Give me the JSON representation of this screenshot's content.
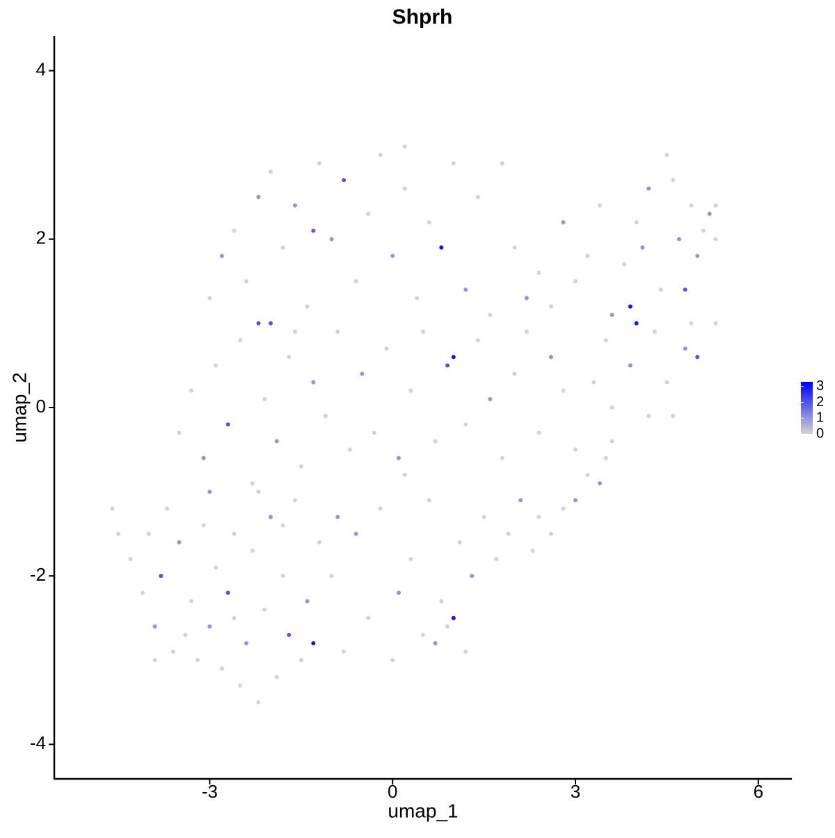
{
  "chart_data": {
    "type": "scatter",
    "title": "Shprh",
    "x_label": "umap_1",
    "y_label": "umap_2",
    "xlim": [
      -5.55,
      6.55
    ],
    "ylim": [
      -4.41,
      4.41
    ],
    "xticks": [
      -3,
      0,
      3,
      6
    ],
    "yticks": [
      -4,
      -2,
      0,
      2,
      4
    ],
    "colorbar": {
      "lim": [
        0,
        3.3
      ],
      "ticks": [
        0,
        1,
        2,
        3
      ],
      "colors": [
        "#d3d3d3",
        "#0000ff"
      ]
    },
    "x": [
      -4.6,
      -4.5,
      -4.3,
      -4.1,
      -3.9,
      -3.8,
      -3.6,
      -3.5,
      -3.3,
      -3.2,
      -3.1,
      -3.0,
      -2.9,
      -2.8,
      -2.7,
      -2.6,
      -2.5,
      -2.4,
      -2.3,
      -2.2,
      -2.1,
      -2.0,
      -1.9,
      -1.8,
      -1.7,
      -1.6,
      -1.5,
      -1.4,
      -1.3,
      -1.2,
      -3.7,
      -3.4,
      -3.0,
      -2.6,
      -2.2,
      -1.8,
      -4.0,
      -3.9,
      -1.0,
      -0.8,
      -0.6,
      -0.4,
      -0.2,
      0.0,
      0.1,
      0.3,
      0.5,
      0.6,
      0.8,
      0.9,
      1.0,
      1.1,
      1.3,
      1.5,
      1.7,
      1.9,
      2.1,
      2.3,
      2.4,
      2.6,
      2.8,
      3.0,
      3.2,
      3.4,
      3.5,
      3.6,
      -0.9,
      0.2,
      0.7,
      1.2,
      -3.5,
      -3.3,
      -3.1,
      -2.9,
      -2.7,
      -2.5,
      -2.3,
      -2.1,
      -1.9,
      -1.7,
      -1.5,
      -1.3,
      -1.1,
      -0.9,
      -0.7,
      -0.5,
      -0.3,
      -0.1,
      0.1,
      0.3,
      0.5,
      0.7,
      0.9,
      1.0,
      1.2,
      1.4,
      1.6,
      1.8,
      2.0,
      2.2,
      2.4,
      2.6,
      2.8,
      3.0,
      3.3,
      3.6,
      3.9,
      4.2,
      4.5,
      4.8,
      5.0,
      4.6,
      -2.0,
      -1.6,
      -3.0,
      -2.8,
      -2.6,
      -2.4,
      -2.2,
      -2.0,
      -1.8,
      -1.6,
      -1.4,
      -1.2,
      -1.0,
      -0.8,
      -0.6,
      -0.4,
      -0.2,
      0.0,
      0.2,
      0.4,
      0.6,
      0.8,
      1.0,
      1.2,
      1.4,
      1.6,
      1.8,
      2.0,
      2.2,
      2.4,
      2.6,
      2.8,
      3.0,
      3.2,
      0.2,
      -1.3,
      -2.2,
      3.4,
      3.6,
      3.8,
      4.0,
      3.9,
      4.0,
      4.2,
      4.4,
      4.5,
      4.6,
      4.7,
      4.8,
      4.9,
      5.0,
      5.1,
      5.2,
      5.3,
      5.3,
      4.3,
      4.9,
      5.3,
      3.5,
      4.1
    ],
    "y": [
      -1.2,
      -1.5,
      -1.8,
      -2.2,
      -2.6,
      -2.0,
      -2.9,
      -1.6,
      -2.3,
      -3.0,
      -1.4,
      -2.6,
      -1.9,
      -3.1,
      -2.2,
      -1.5,
      -3.3,
      -2.8,
      -1.7,
      -3.5,
      -2.4,
      -1.3,
      -3.2,
      -2.0,
      -2.7,
      -1.1,
      -3.0,
      -2.3,
      -2.8,
      -1.6,
      -1.2,
      -2.7,
      -1.0,
      -2.5,
      -1.0,
      -1.4,
      -1.5,
      -3.0,
      -2.0,
      -2.9,
      -1.5,
      -2.5,
      -1.2,
      -3.0,
      -2.2,
      -1.8,
      -2.7,
      -1.1,
      -2.3,
      -2.6,
      -2.5,
      -1.6,
      -2.0,
      -1.3,
      -1.8,
      -1.5,
      -1.1,
      -1.7,
      -1.3,
      -1.5,
      -1.2,
      -1.1,
      -0.8,
      -0.9,
      -0.6,
      -0.4,
      -1.3,
      -0.8,
      -2.8,
      -2.9,
      -0.3,
      0.2,
      -0.6,
      0.5,
      -0.2,
      0.8,
      -0.9,
      0.1,
      -0.4,
      0.6,
      -0.7,
      0.3,
      -0.1,
      0.9,
      -0.5,
      0.4,
      -0.3,
      0.7,
      -0.6,
      0.2,
      0.9,
      -0.4,
      0.5,
      0.6,
      -0.2,
      0.8,
      0.1,
      -0.6,
      0.4,
      0.9,
      -0.3,
      0.6,
      0.2,
      -0.5,
      0.3,
      0.0,
      0.5,
      -0.1,
      0.3,
      0.7,
      0.6,
      -0.1,
      1.0,
      0.9,
      1.3,
      1.8,
      2.1,
      1.5,
      2.5,
      2.8,
      1.9,
      2.4,
      1.2,
      2.9,
      2.0,
      2.7,
      1.5,
      2.3,
      3.0,
      1.8,
      2.6,
      1.3,
      2.2,
      1.9,
      2.9,
      1.4,
      2.5,
      1.1,
      2.9,
      1.9,
      1.3,
      1.6,
      1.2,
      2.2,
      1.5,
      1.8,
      3.1,
      2.1,
      1.0,
      2.4,
      1.1,
      1.7,
      2.2,
      1.2,
      1.0,
      2.6,
      1.4,
      3.0,
      2.7,
      2.0,
      1.4,
      2.4,
      1.8,
      2.1,
      2.3,
      2.0,
      2.4,
      0.9,
      1.0,
      1.0,
      0.8,
      1.9
    ],
    "expression": [
      0,
      0,
      0,
      0,
      1,
      2,
      0,
      1,
      0,
      0,
      0,
      1,
      0,
      0,
      2,
      0,
      0,
      1,
      0,
      0,
      0,
      1,
      0,
      0,
      2,
      0,
      0,
      1,
      3,
      0,
      0,
      0,
      1,
      0,
      0,
      0,
      0,
      0,
      0,
      0,
      1,
      0,
      0,
      0,
      1,
      0,
      0,
      0,
      0,
      0,
      3,
      0,
      1,
      0,
      0,
      0,
      1,
      0,
      0,
      0,
      0,
      1,
      0,
      1,
      0,
      0,
      1,
      0,
      1,
      0,
      0,
      0,
      1,
      0,
      2,
      0,
      0,
      0,
      1,
      0,
      0,
      1,
      0,
      0,
      0,
      1,
      0,
      0,
      1,
      0,
      0,
      0,
      2,
      3,
      0,
      0,
      1,
      0,
      0,
      0,
      0,
      1,
      0,
      0,
      0,
      0,
      1,
      0,
      0,
      1,
      2,
      0,
      2,
      0,
      0,
      1,
      0,
      0,
      1,
      0,
      0,
      1,
      0,
      0,
      1,
      2,
      0,
      0,
      0,
      1,
      0,
      0,
      0,
      3,
      0,
      1,
      0,
      0,
      0,
      0,
      1,
      0,
      0,
      1,
      0,
      0,
      0,
      2,
      2,
      0,
      1,
      0,
      0,
      3,
      3,
      1,
      0,
      0,
      0,
      1,
      2,
      0,
      1,
      0,
      1,
      0,
      0,
      0,
      0,
      0,
      0,
      1
    ]
  }
}
